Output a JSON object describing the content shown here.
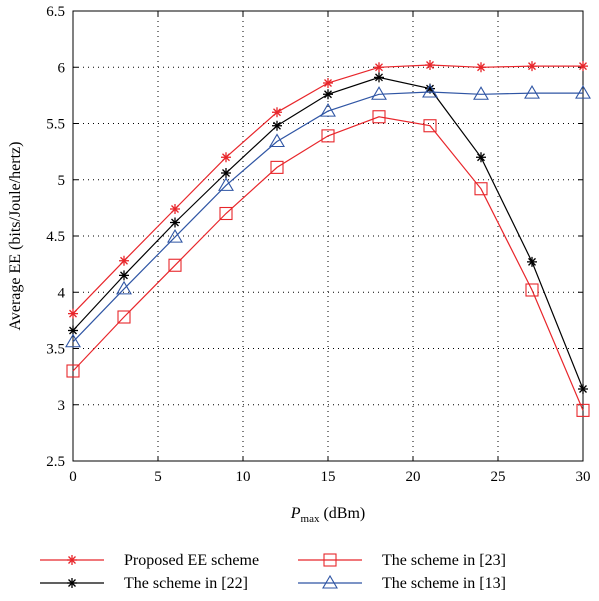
{
  "chart_data": {
    "type": "line",
    "title": "",
    "xlabel": {
      "main": "P",
      "sub": "max",
      "unit": " (dBm)"
    },
    "ylabel": "Average EE (bits/Joule/hertz)",
    "x": [
      0,
      3,
      6,
      9,
      12,
      15,
      18,
      21,
      24,
      27,
      30
    ],
    "xlim": [
      0,
      30
    ],
    "ylim": [
      2.5,
      6.5
    ],
    "xticks": [
      0,
      5,
      10,
      15,
      20,
      25,
      30
    ],
    "yticks": [
      2.5,
      3,
      3.5,
      4,
      4.5,
      5,
      5.5,
      6,
      6.5
    ],
    "xtick_labels": [
      "0",
      "5",
      "10",
      "15",
      "20",
      "25",
      "30"
    ],
    "ytick_labels": [
      "2.5",
      "3",
      "3.5",
      "4",
      "4.5",
      "5",
      "5.5",
      "6",
      "6.5"
    ],
    "grid": true,
    "legend_position": "bottom",
    "series": [
      {
        "name": "Proposed EE scheme",
        "color": "#e8262b",
        "marker": "star",
        "values": [
          3.81,
          4.28,
          4.74,
          5.2,
          5.6,
          5.86,
          6.0,
          6.02,
          6.0,
          6.01,
          6.01
        ]
      },
      {
        "name": "The scheme in [22]",
        "color": "#000000",
        "marker": "star",
        "values": [
          3.66,
          4.15,
          4.62,
          5.06,
          5.48,
          5.76,
          5.91,
          5.81,
          5.2,
          4.27,
          3.14
        ]
      },
      {
        "name": "The scheme in [23]",
        "color": "#e8262b",
        "marker": "square",
        "values": [
          3.3,
          3.78,
          4.24,
          4.7,
          5.11,
          5.39,
          5.56,
          5.48,
          4.92,
          4.02,
          2.95
        ]
      },
      {
        "name": "The scheme in [13]",
        "color": "#2f55a4",
        "marker": "triangle",
        "values": [
          3.56,
          4.03,
          4.49,
          4.95,
          5.34,
          5.61,
          5.76,
          5.78,
          5.76,
          5.77,
          5.77
        ]
      }
    ]
  }
}
